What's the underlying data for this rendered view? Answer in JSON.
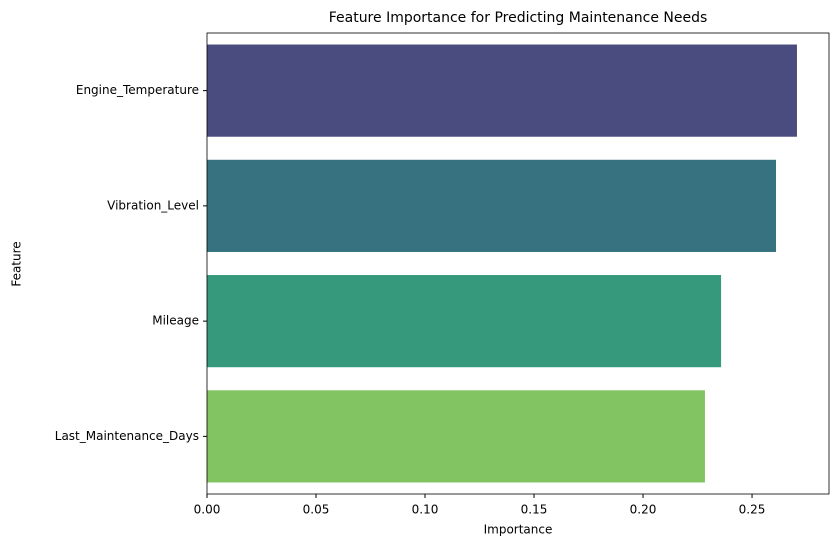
{
  "chart_data": {
    "type": "barh",
    "title": "Feature Importance for Predicting Maintenance Needs",
    "xlabel": "Importance",
    "ylabel": "Feature",
    "categories": [
      "Engine_Temperature",
      "Vibration_Level",
      "Mileage",
      "Last_Maintenance_Days"
    ],
    "values": [
      0.2706,
      0.261,
      0.2358,
      0.2284
    ],
    "colors": [
      "#4a4b7e",
      "#377280",
      "#36997b",
      "#82c462"
    ],
    "xlim": [
      0,
      0.2853
    ],
    "xticks": [
      {
        "value": 0,
        "label": "0.00"
      },
      {
        "value": 0.05,
        "label": "0.05"
      },
      {
        "value": 0.1,
        "label": "0.10"
      },
      {
        "value": 0.15,
        "label": "0.15"
      },
      {
        "value": 0.2,
        "label": "0.20"
      },
      {
        "value": 0.25,
        "label": "0.25"
      }
    ]
  }
}
